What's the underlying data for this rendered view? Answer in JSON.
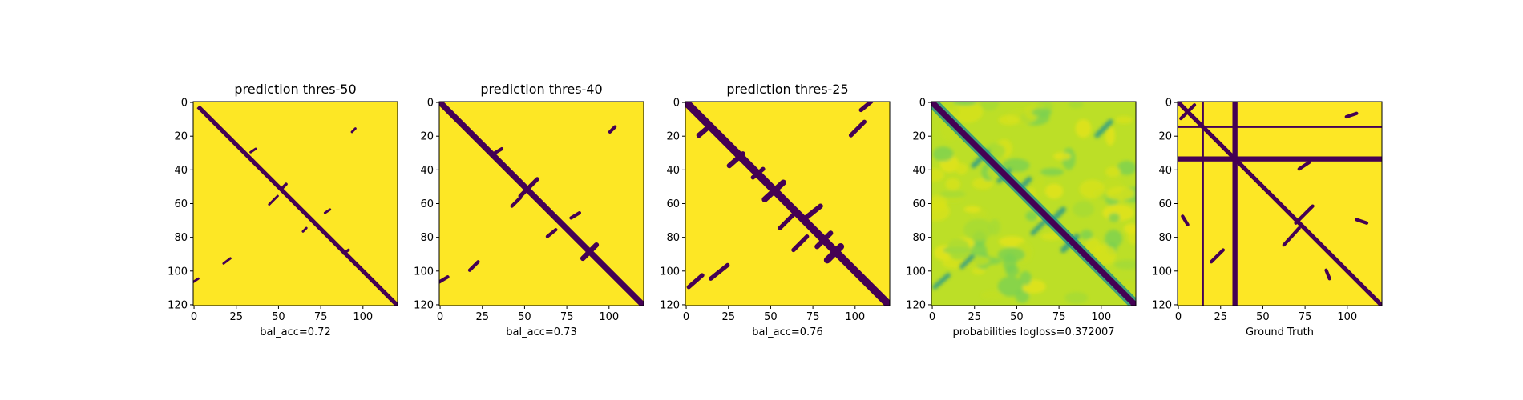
{
  "colors": {
    "dark": "#440154",
    "yellow": "#fde725",
    "background": "#ffffff",
    "axis": "#000000"
  },
  "axes": {
    "ticks": [
      0,
      25,
      50,
      75,
      100
    ],
    "y_ticks": [
      0,
      20,
      40,
      60,
      80,
      100,
      120
    ]
  },
  "chart_data": [
    {
      "type": "heatmap",
      "title": "prediction thres-50",
      "xlabel": "bal_acc=0.72",
      "colormap": "viridis",
      "xlim": [
        0,
        121
      ],
      "ylim": [
        121,
        0
      ],
      "x_ticks": [
        "0",
        "25",
        "50",
        "75",
        "100"
      ],
      "y_ticks": [
        "0",
        "20",
        "40",
        "60",
        "80",
        "100",
        "120"
      ],
      "values": "binary matrix: main diagonal band (width ~3) plus sparse off-diagonal segments",
      "segments": [
        [
          3,
          3,
          121,
          121,
          2.5
        ],
        [
          18,
          96,
          22,
          93,
          1.4
        ],
        [
          94,
          18,
          96,
          16,
          1.4
        ],
        [
          0,
          107,
          3,
          105,
          1.4
        ],
        [
          34,
          30,
          37,
          28,
          1.4
        ],
        [
          45,
          61,
          50,
          56,
          1.4
        ],
        [
          78,
          66,
          81,
          64,
          1.4
        ],
        [
          65,
          77,
          67,
          75,
          1.4
        ],
        [
          52,
          52,
          55,
          49,
          1.8
        ],
        [
          89,
          90,
          92,
          88,
          1.6
        ]
      ]
    },
    {
      "type": "heatmap",
      "title": "prediction thres-40",
      "xlabel": "bal_acc=0.73",
      "colormap": "viridis",
      "xlim": [
        0,
        121
      ],
      "ylim": [
        121,
        0
      ],
      "x_ticks": [
        "0",
        "25",
        "50",
        "75",
        "100"
      ],
      "y_ticks": [
        "0",
        "20",
        "40",
        "60",
        "80",
        "100",
        "120"
      ],
      "values": "binary matrix: thicker diagonal band plus off-diagonal segments",
      "segments": [
        [
          0,
          0,
          121,
          121,
          3.5
        ],
        [
          18,
          100,
          23,
          95,
          2
        ],
        [
          101,
          18,
          104,
          15,
          2
        ],
        [
          0,
          107,
          5,
          104,
          2
        ],
        [
          32,
          31,
          37,
          28,
          2
        ],
        [
          43,
          62,
          48,
          57,
          2
        ],
        [
          48,
          56,
          58,
          46,
          2.5
        ],
        [
          78,
          69,
          83,
          66,
          2
        ],
        [
          64,
          80,
          69,
          76,
          2
        ],
        [
          85,
          93,
          93,
          85,
          3
        ]
      ]
    },
    {
      "type": "heatmap",
      "title": "prediction thres-25",
      "xlabel": "bal_acc=0.76",
      "colormap": "viridis",
      "xlim": [
        0,
        121
      ],
      "ylim": [
        121,
        0
      ],
      "x_ticks": [
        "0",
        "25",
        "50",
        "75",
        "100"
      ],
      "y_ticks": [
        "0",
        "20",
        "40",
        "60",
        "80",
        "100",
        "120"
      ],
      "values": "binary matrix: widest diagonal band plus many off-diagonal blobs",
      "segments": [
        [
          0,
          0,
          121,
          121,
          4.5
        ],
        [
          2,
          110,
          10,
          103,
          2.5
        ],
        [
          15,
          105,
          25,
          97,
          2.5
        ],
        [
          8,
          20,
          15,
          14,
          3
        ],
        [
          26,
          38,
          34,
          31,
          3
        ],
        [
          40,
          45,
          46,
          40,
          2.5
        ],
        [
          47,
          58,
          58,
          48,
          3.5
        ],
        [
          56,
          75,
          66,
          65,
          2.5
        ],
        [
          64,
          88,
          72,
          80,
          2.5
        ],
        [
          70,
          70,
          80,
          62,
          3
        ],
        [
          78,
          86,
          86,
          78,
          3
        ],
        [
          84,
          94,
          92,
          86,
          4
        ],
        [
          98,
          20,
          106,
          12,
          2.5
        ],
        [
          104,
          5,
          110,
          0,
          2.5
        ]
      ]
    },
    {
      "type": "heatmap",
      "title": "",
      "xlabel": "probabilities logloss=0.372007",
      "colormap": "viridis",
      "xlim": [
        0,
        121
      ],
      "ylim": [
        121,
        0
      ],
      "x_ticks": [
        "0",
        "25",
        "50",
        "75",
        "100"
      ],
      "y_ticks": [
        "0",
        "20",
        "40",
        "60",
        "80",
        "100",
        "120"
      ],
      "values": "continuous probabilities: dark main diagonal, green-yellow background with blue-green off-diagonal streaks",
      "segments": [
        [
          0,
          0,
          121,
          121,
          3.5
        ],
        [
          18,
          98,
          24,
          92,
          2
        ],
        [
          25,
          38,
          33,
          30,
          2.2
        ],
        [
          40,
          47,
          46,
          41,
          2
        ],
        [
          52,
          52,
          58,
          46,
          2.2
        ],
        [
          70,
          72,
          78,
          64,
          2.4
        ],
        [
          78,
          88,
          86,
          80,
          2.4
        ],
        [
          98,
          20,
          106,
          12,
          2.2
        ],
        [
          2,
          110,
          10,
          103,
          2
        ],
        [
          60,
          78,
          68,
          70,
          2
        ]
      ]
    },
    {
      "type": "heatmap",
      "title": "",
      "xlabel": "Ground Truth",
      "colormap": "viridis",
      "xlim": [
        0,
        121
      ],
      "ylim": [
        121,
        0
      ],
      "x_ticks": [
        "0",
        "25",
        "50",
        "75",
        "100"
      ],
      "y_ticks": [
        "0",
        "20",
        "40",
        "60",
        "80",
        "100",
        "120"
      ],
      "values": "binary ground-truth contact map: diagonal band, full rows/columns at indices 15 and 33-35, scattered contacts",
      "segments": [
        [
          0,
          0,
          121,
          121,
          2.5
        ],
        [
          2,
          2,
          10,
          10,
          2
        ],
        [
          2,
          10,
          10,
          2,
          2
        ],
        [
          63,
          85,
          72,
          75,
          2
        ],
        [
          70,
          72,
          80,
          62,
          2
        ],
        [
          20,
          95,
          27,
          88,
          2
        ],
        [
          100,
          9,
          106,
          7,
          2
        ],
        [
          106,
          70,
          112,
          72,
          2
        ],
        [
          3,
          68,
          6,
          73,
          2
        ],
        [
          88,
          100,
          90,
          105,
          2
        ],
        [
          72,
          40,
          78,
          36,
          2
        ]
      ]
    }
  ]
}
